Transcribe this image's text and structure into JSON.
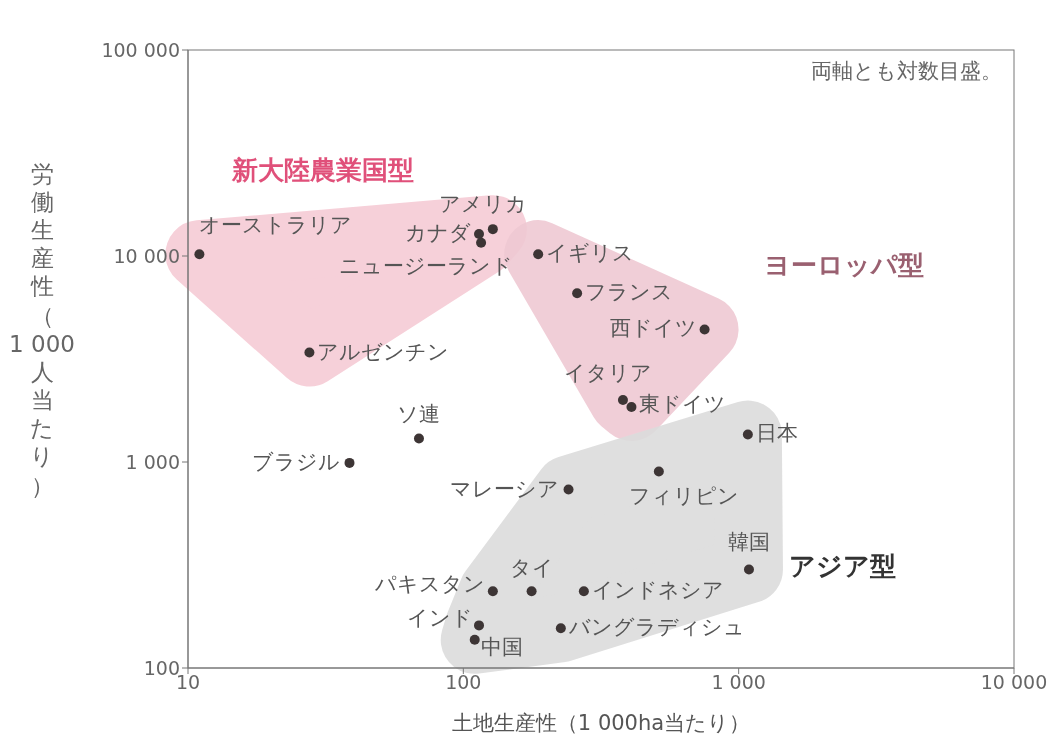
{
  "chart_data": {
    "type": "scatter",
    "xlabel": "土地生産性（1 000ha当たり）",
    "ylabel": "労働生産性（1 000人当たり）",
    "log": "xy",
    "xlim": [
      10,
      10000
    ],
    "ylim": [
      100,
      100000
    ],
    "xticks": [
      10,
      100,
      {
        "value": 1000,
        "label": "1 000"
      },
      {
        "value": 10000,
        "label": "10 000"
      }
    ],
    "yticks": [
      100,
      {
        "value": 1000,
        "label": "1 000"
      },
      {
        "value": 10000,
        "label": "10 000"
      },
      {
        "value": 100000,
        "label": "100 000"
      }
    ],
    "marker": "circle",
    "series": [
      {
        "name": "新大陸農業国型",
        "color": "#3d3535",
        "x": [
          11,
          128,
          114,
          116,
          27.6
        ],
        "values": [
          10200,
          13500,
          12800,
          11600,
          3400
        ]
      },
      {
        "name": "ヨーロッパ型",
        "color": "#3d3535",
        "x": [
          187,
          259,
          752,
          380,
          408
        ],
        "values": [
          10200,
          6600,
          4400,
          2000,
          1850
        ]
      },
      {
        "name": "アジア型",
        "color": "#3d3535",
        "x": [
          1080,
          513,
          241,
          1090,
          128,
          177,
          274,
          114,
          110,
          226
        ],
        "values": [
          1360,
          900,
          735,
          301,
          236,
          236,
          236,
          161,
          137,
          156
        ]
      },
      {
        "color": "#3d3535",
        "x": [
          69,
          38.6
        ],
        "values": [
          1300,
          990
        ]
      }
    ],
    "annotations": [
      "両軸とも対数目盛。",
      {
        "text": "オーストラリア",
        "x": 11,
        "y": 10200
      },
      {
        "text": "アメリカ",
        "x": 128,
        "y": 13500
      },
      {
        "text": "カナダ",
        "x": 114,
        "y": 12800
      },
      {
        "text": "ニュージーランド",
        "x": 116,
        "y": 11600
      },
      {
        "text": "アルゼンチン",
        "x": 27.6,
        "y": 3400
      },
      {
        "text": "イギリス",
        "x": 187,
        "y": 10200
      },
      {
        "text": "フランス",
        "x": 259,
        "y": 6600
      },
      {
        "text": "西ドイツ",
        "x": 752,
        "y": 4400
      },
      {
        "text": "イタリア",
        "x": 380,
        "y": 2000
      },
      {
        "text": "東ドイツ",
        "x": 408,
        "y": 1850
      },
      {
        "text": "日本",
        "x": 1080,
        "y": 1360
      },
      {
        "text": "フィリピン",
        "x": 513,
        "y": 900
      },
      {
        "text": "マレーシア",
        "x": 241,
        "y": 735
      },
      {
        "text": "韓国",
        "x": 1090,
        "y": 301
      },
      {
        "text": "パキスタン",
        "x": 128,
        "y": 236
      },
      {
        "text": "タイ",
        "x": 177,
        "y": 236
      },
      {
        "text": "インドネシア",
        "x": 274,
        "y": 236
      },
      {
        "text": "インド",
        "x": 114,
        "y": 161
      },
      {
        "text": "中国",
        "x": 110,
        "y": 137
      },
      {
        "text": "バングラディシュ",
        "x": 226,
        "y": 156
      },
      {
        "text": "ソ連",
        "x": 69,
        "y": 1300
      },
      {
        "text": "ブラジル",
        "x": 38.6,
        "y": 990
      }
    ]
  }
}
